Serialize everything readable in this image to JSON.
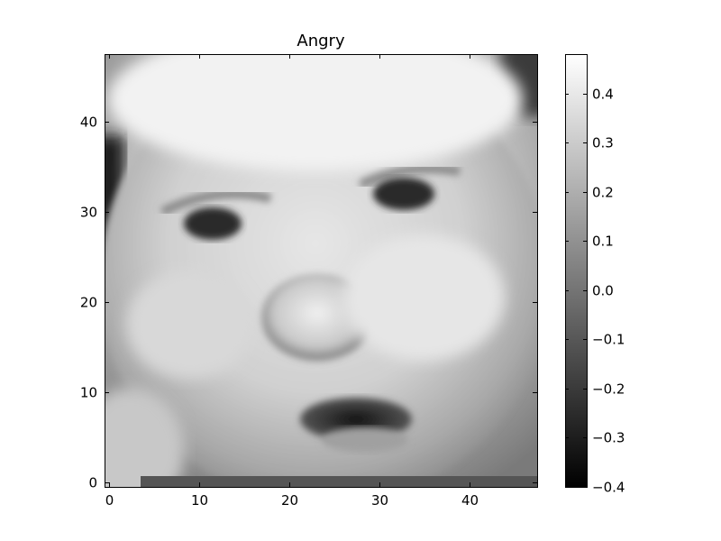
{
  "chart_data": {
    "type": "heatmap",
    "title": "Angry",
    "colormap": "gray",
    "image_shape": [
      48,
      48
    ],
    "x_ticks": [
      0,
      10,
      20,
      30,
      40
    ],
    "y_ticks": [
      0,
      10,
      20,
      30,
      40
    ],
    "xlim": [
      -0.5,
      47.5
    ],
    "ylim": [
      47.5,
      -0.5
    ],
    "colorbar": {
      "min": -0.4,
      "max": 0.48,
      "ticks": [
        0.4,
        0.3,
        0.2,
        0.1,
        0.0,
        -0.1,
        -0.2,
        -0.3,
        -0.4
      ],
      "tick_labels": [
        "0.4",
        "0.3",
        "0.2",
        "0.1",
        "0.0",
        "−0.1",
        "−0.2",
        "−0.3",
        "−0.4"
      ]
    }
  }
}
